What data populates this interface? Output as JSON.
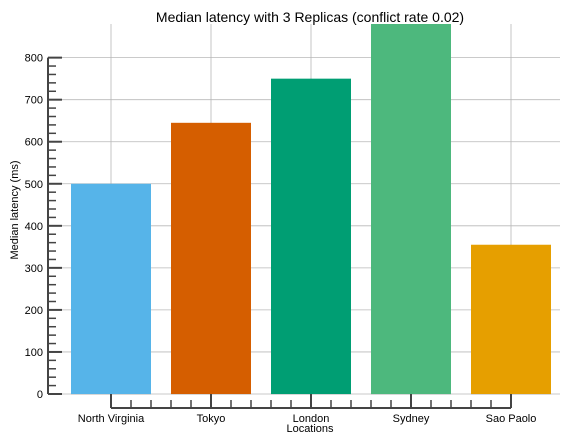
{
  "chart_data": {
    "type": "bar",
    "title": "Median latency with 3 Replicas (conflict rate 0.02)",
    "xlabel": "Locations",
    "ylabel": "Median latency (ms)",
    "categories": [
      "North Virginia",
      "Tokyo",
      "London",
      "Sydney",
      "Sao Paolo"
    ],
    "values": [
      500,
      645,
      750,
      880,
      355
    ],
    "colors": [
      "#56B4E9",
      "#D55E00",
      "#009E73",
      "#4DB87D",
      "#E69F00"
    ],
    "ylim": [
      0,
      880
    ],
    "yticks": [
      0,
      100,
      200,
      300,
      400,
      500,
      600,
      700,
      800
    ],
    "grid": true
  }
}
